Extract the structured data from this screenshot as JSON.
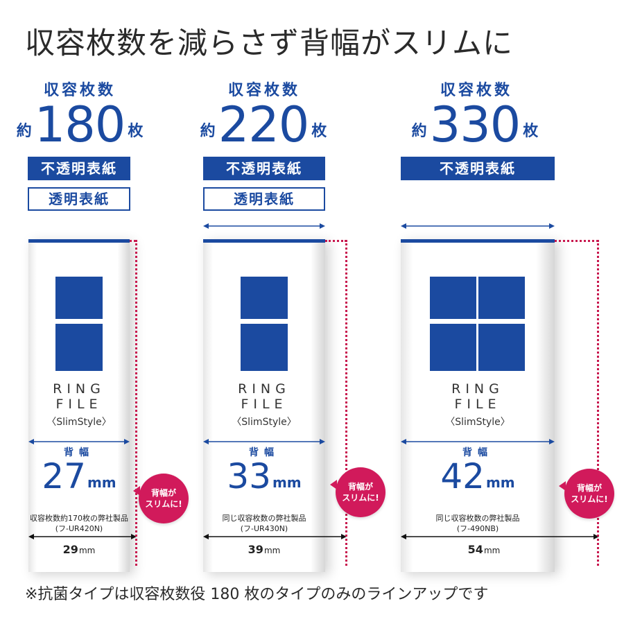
{
  "headline": "収容枚数を減らさず背幅がスリムに",
  "colors": {
    "accent": "#1b4aa0",
    "highlight": "#d11a5b"
  },
  "columns": [
    {
      "caption": "収容枚数",
      "prefix": "約",
      "count": "180",
      "suffix": "枚",
      "tags": [
        {
          "label": "不透明表紙",
          "style": "solid"
        },
        {
          "label": "透明表紙",
          "style": "outline"
        }
      ],
      "title": "RING\nFILE",
      "subtitle": "〈SlimStyle〉",
      "back_label": "背幅",
      "back_value": "27",
      "back_unit": "mm",
      "note": "収容枚数約170枚の弊社製品",
      "model": "(フ-UR420N)",
      "other_value": "29",
      "other_unit": "mm",
      "badge": "背幅が\nスリムに!"
    },
    {
      "caption": "収容枚数",
      "prefix": "約",
      "count": "220",
      "suffix": "枚",
      "tags": [
        {
          "label": "不透明表紙",
          "style": "solid"
        },
        {
          "label": "透明表紙",
          "style": "outline"
        }
      ],
      "title": "RING\nFILE",
      "subtitle": "〈SlimStyle〉",
      "back_label": "背幅",
      "back_value": "33",
      "back_unit": "mm",
      "note": "同じ収容枚数の弊社製品",
      "model": "(フ-UR430N)",
      "other_value": "39",
      "other_unit": "mm",
      "badge": "背幅が\nスリムに!"
    },
    {
      "caption": "収容枚数",
      "prefix": "約",
      "count": "330",
      "suffix": "枚",
      "tags": [
        {
          "label": "不透明表紙",
          "style": "solid"
        }
      ],
      "title": "RING\nFILE",
      "subtitle": "〈SlimStyle〉",
      "back_label": "背幅",
      "back_value": "42",
      "back_unit": "mm",
      "note": "同じ収容枚数の弊社製品",
      "model": "(フ-490NB)",
      "other_value": "54",
      "other_unit": "mm",
      "badge": "背幅が\nスリムに!"
    }
  ],
  "footnote": "※抗菌タイプは収容枚数役 180 枚のタイプのみのラインアップです"
}
